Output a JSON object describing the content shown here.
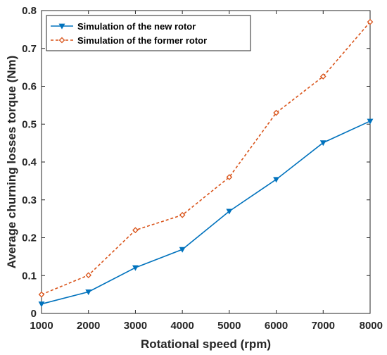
{
  "chart_data": {
    "type": "line",
    "x": [
      1000,
      2000,
      3000,
      4000,
      5000,
      6000,
      7000,
      8000
    ],
    "series": [
      {
        "name": "Simulation of the new rotor",
        "values": [
          0.025,
          0.057,
          0.121,
          0.169,
          0.27,
          0.354,
          0.451,
          0.508
        ],
        "color": "#0072BD",
        "line_style": "solid",
        "marker": "triangle-down"
      },
      {
        "name": "Simulation of the former rotor",
        "values": [
          0.05,
          0.101,
          0.22,
          0.26,
          0.36,
          0.53,
          0.626,
          0.77
        ],
        "color": "#D95319",
        "line_style": "dashed",
        "marker": "diamond"
      }
    ],
    "title": "",
    "xlabel": "Rotational speed (rpm)",
    "ylabel": "Average churning losses torque (Nm)",
    "xlim": [
      1000,
      8000
    ],
    "ylim": [
      0,
      0.8
    ],
    "xticks": [
      1000,
      2000,
      3000,
      4000,
      5000,
      6000,
      7000,
      8000
    ],
    "yticks": [
      0,
      0.1,
      0.2,
      0.3,
      0.4,
      0.5,
      0.6,
      0.7,
      0.8
    ],
    "xtick_labels": [
      "1000",
      "2000",
      "3000",
      "4000",
      "5000",
      "6000",
      "7000",
      "8000"
    ],
    "ytick_labels": [
      "0",
      "0.1",
      "0.2",
      "0.3",
      "0.4",
      "0.5",
      "0.6",
      "0.7",
      "0.8"
    ],
    "grid": false,
    "legend_position": "top-left"
  }
}
